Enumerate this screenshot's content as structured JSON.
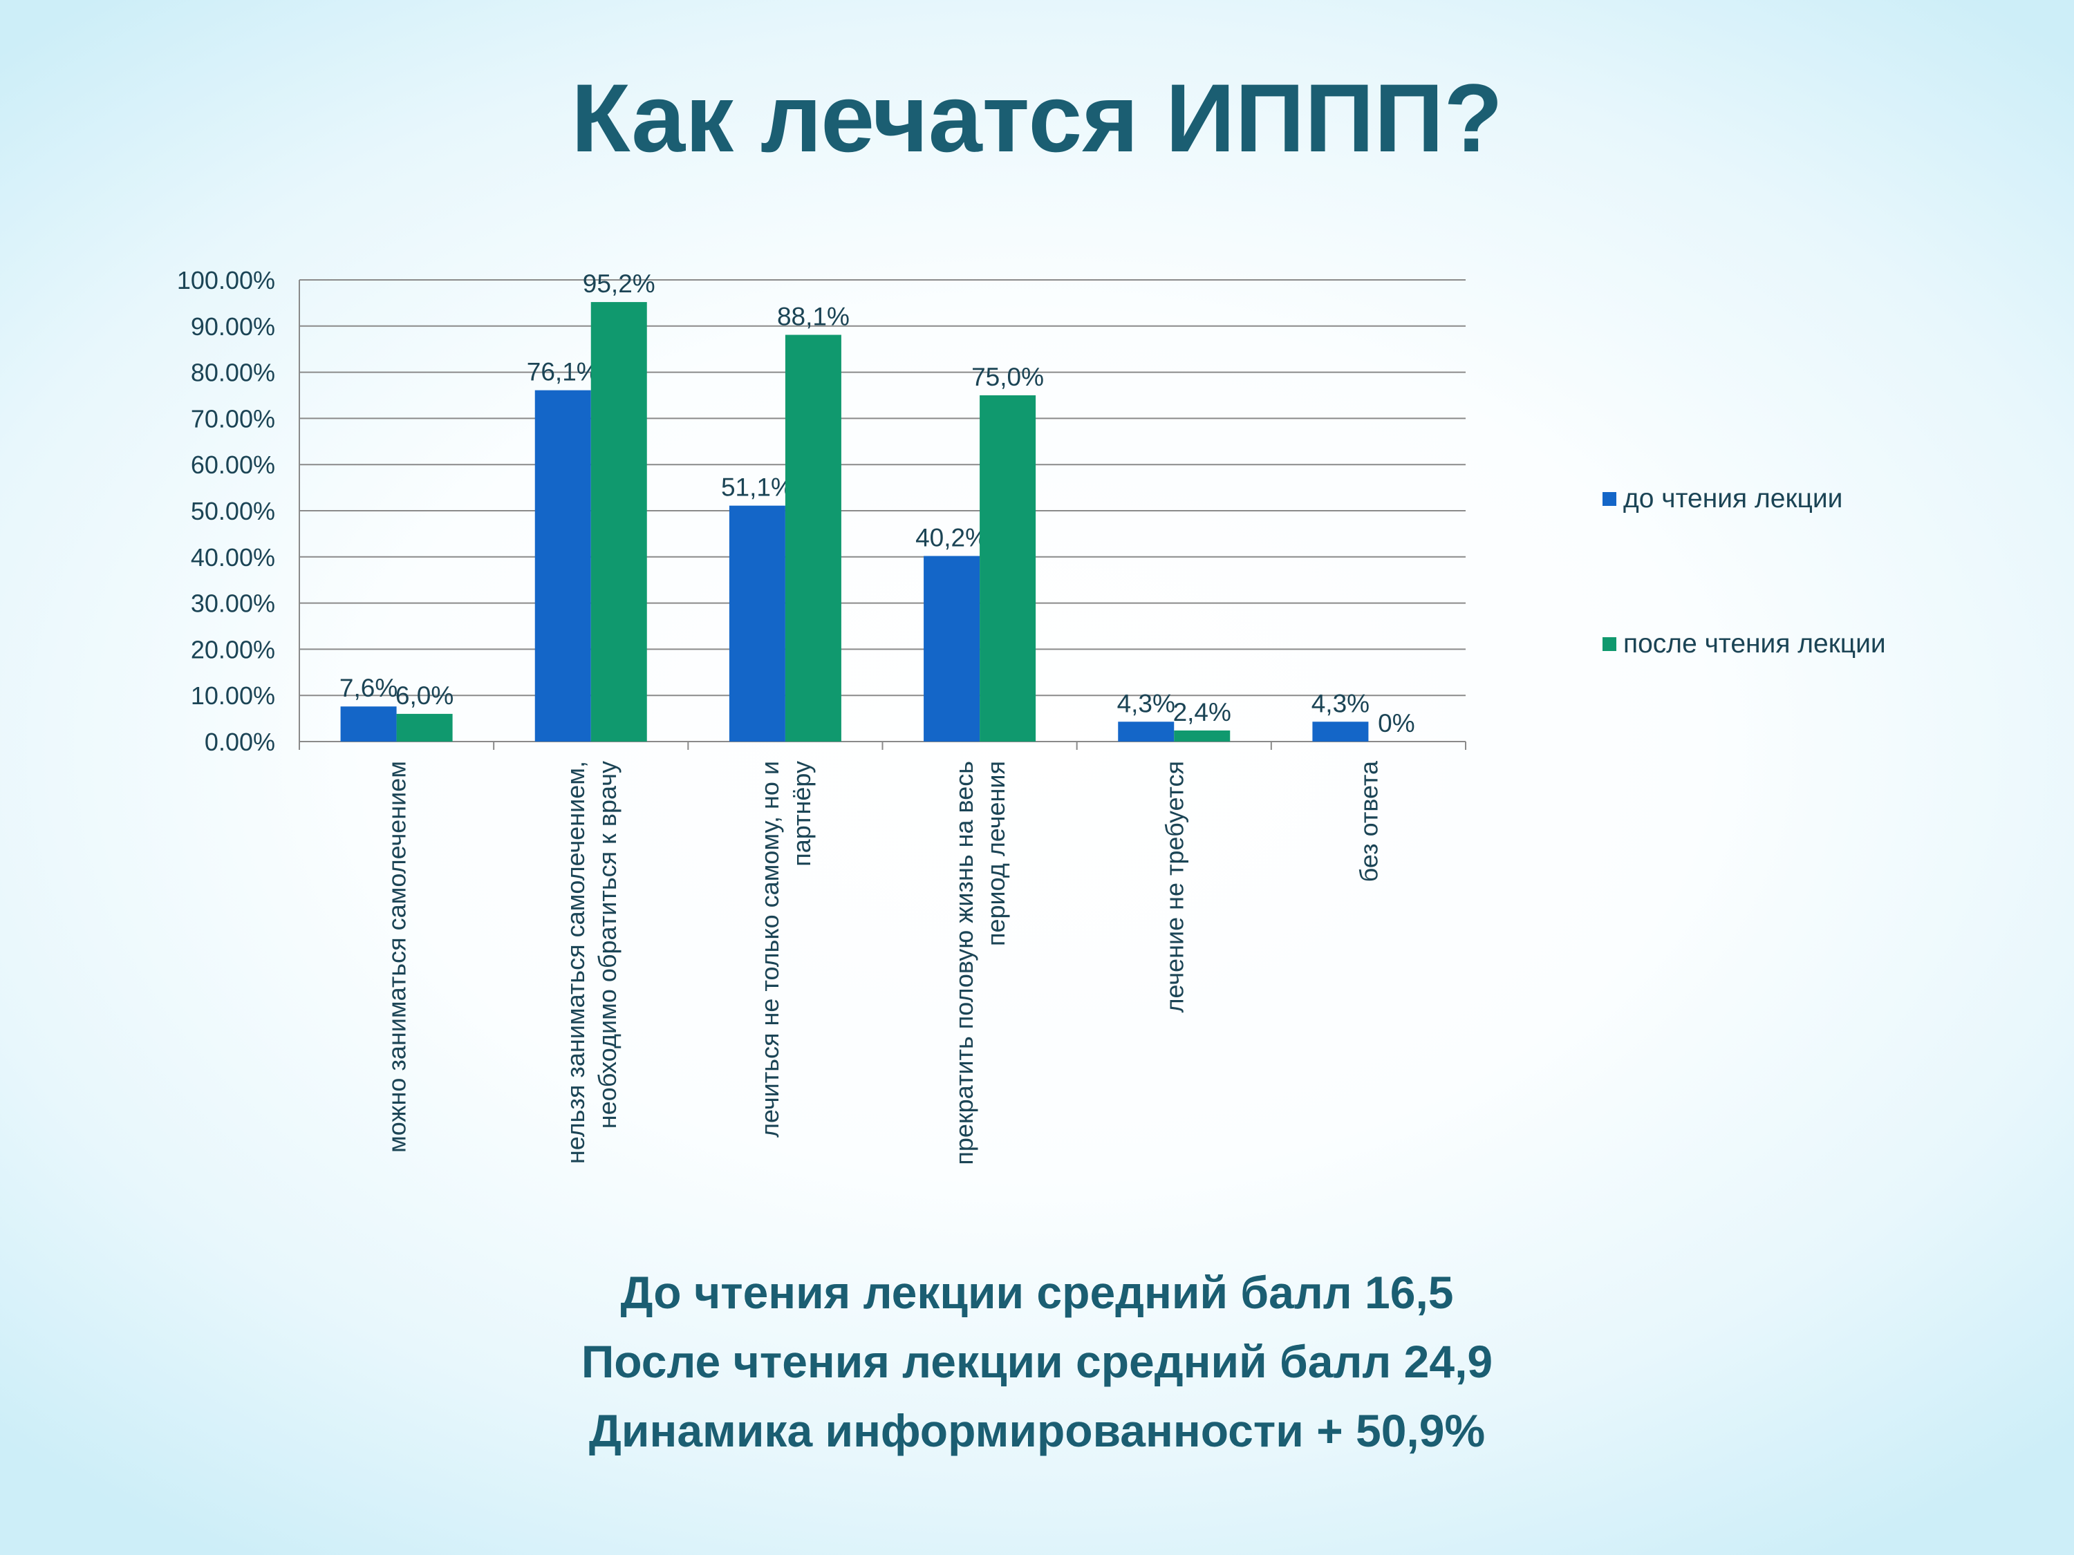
{
  "slide": {
    "title": "Как лечатся ИППП?"
  },
  "chart_data": {
    "type": "bar",
    "categories": [
      [
        "можно заниматься самолечением"
      ],
      [
        "нельзя заниматься самолечением,",
        "необходимо обратиться к врачу"
      ],
      [
        "лечиться не только самому, но и",
        "партнёру"
      ],
      [
        "прекратить половую жизнь на весь",
        "период лечения"
      ],
      [
        "лечение не требуется"
      ],
      [
        "без ответа"
      ]
    ],
    "series": [
      {
        "name": "до чтения лекции",
        "color": "#1466c8",
        "values": [
          7.6,
          76.1,
          51.1,
          40.2,
          4.3,
          4.3
        ],
        "labels": [
          "7,6%",
          "76,1%",
          "51,1%",
          "40,2%",
          "4,3%",
          "4,3%"
        ]
      },
      {
        "name": "после чтения лекции",
        "color": "#10996e",
        "values": [
          6.0,
          95.2,
          88.1,
          75.0,
          2.4,
          0
        ],
        "labels": [
          "6,0%",
          "95,2%",
          "88,1%",
          "75,0%",
          "2,4%",
          "0%"
        ]
      }
    ],
    "yticks": [
      "0.00%",
      "10.00%",
      "20.00%",
      "30.00%",
      "40.00%",
      "50.00%",
      "60.00%",
      "70.00%",
      "80.00%",
      "90.00%",
      "100.00%"
    ],
    "ylim": [
      0,
      100
    ],
    "grid": true,
    "legend_position": "right"
  },
  "summary": {
    "line1": "До чтения лекции средний балл 16,5",
    "line2": "После чтения лекции средний балл 24,9",
    "line3": "Динамика информированности + 50,9%"
  }
}
